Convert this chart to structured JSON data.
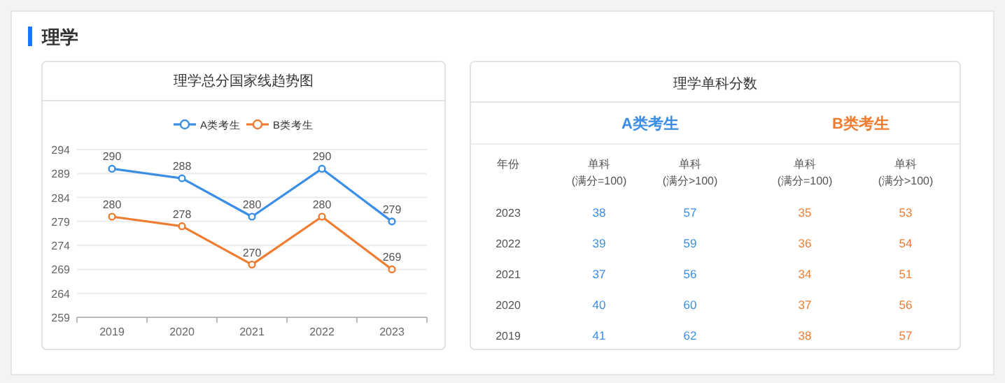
{
  "chart_data": [
    {
      "type": "other",
      "title": "理学"
    },
    {
      "type": "line",
      "title": "理学总分国家线趋势图",
      "categories": [
        "2019",
        "2020",
        "2021",
        "2022",
        "2023"
      ],
      "series": [
        {
          "name": "A类考生",
          "color": "#3a8ee6",
          "values": [
            290,
            288,
            280,
            290,
            279
          ]
        },
        {
          "name": "B类考生",
          "color": "#ee7d31",
          "values": [
            280,
            278,
            270,
            280,
            269
          ]
        }
      ],
      "ylim": [
        259,
        294
      ],
      "yticks": [
        259,
        264,
        269,
        274,
        279,
        284,
        289,
        294
      ],
      "grid": "y",
      "legend": "top",
      "marker": "circle",
      "data_labels": true
    },
    {
      "type": "heatmap",
      "title": "理学单科分数",
      "ylabel": "年份",
      "categories": [
        "单科\n(满分=100)",
        "单科\n(满分>100)",
        "单科\n(满分=100)",
        "单科\n(满分>100)"
      ],
      "y_categories": [
        "2023",
        "2022",
        "2021",
        "2020",
        "2019"
      ],
      "cells": [
        [
          38,
          57,
          35,
          53
        ],
        [
          39,
          59,
          36,
          54
        ],
        [
          37,
          56,
          34,
          51
        ],
        [
          40,
          60,
          37,
          56
        ],
        [
          41,
          62,
          38,
          57
        ]
      ],
      "colors": [
        "#3a8ee6",
        "#3a8ee6",
        "#ee7d31",
        "#ee7d31"
      ],
      "annotations": [
        "A类考生",
        "B类考生"
      ],
      "data_labels": true
    }
  ]
}
